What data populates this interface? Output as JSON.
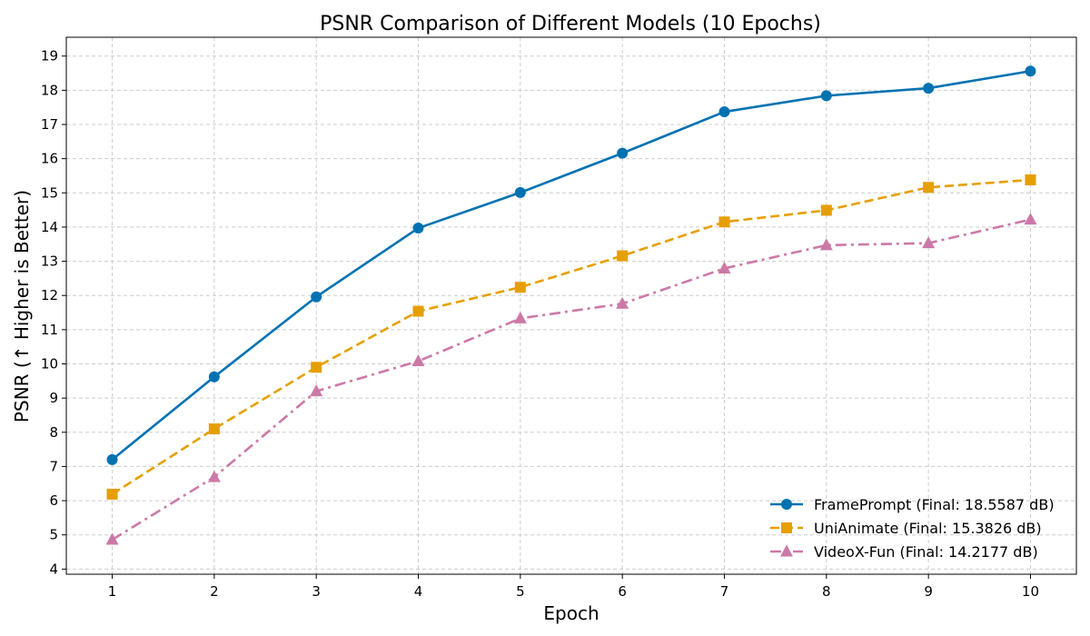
{
  "chart_data": {
    "type": "line",
    "title": "PSNR Comparison of Different Models (10 Epochs)",
    "xlabel": "Epoch",
    "ylabel": "PSNR (↑ Higher is Better)",
    "x": [
      1,
      2,
      3,
      4,
      5,
      6,
      7,
      8,
      9,
      10
    ],
    "xlim": [
      0.55,
      10.45
    ],
    "ylim": [
      3.85,
      19.55
    ],
    "yticks": [
      4,
      5,
      6,
      7,
      8,
      9,
      10,
      11,
      12,
      13,
      14,
      15,
      16,
      17,
      18,
      19
    ],
    "grid": true,
    "legend_position": "lower-right",
    "series": [
      {
        "name": "FramePrompt",
        "legend": "FramePrompt (Final: 18.5587 dB)",
        "color": "#0072B2",
        "marker": "circle",
        "linestyle": "solid",
        "values": [
          7.2,
          9.62,
          11.96,
          13.97,
          15.01,
          16.16,
          17.37,
          17.84,
          18.06,
          18.56
        ]
      },
      {
        "name": "UniAnimate",
        "legend": "UniAnimate (Final: 15.3826 dB)",
        "color": "#E69F00",
        "marker": "square",
        "linestyle": "dashed",
        "values": [
          6.19,
          8.1,
          9.9,
          11.54,
          12.24,
          13.16,
          14.15,
          14.49,
          15.16,
          15.38
        ]
      },
      {
        "name": "VideoX-Fun",
        "legend": "VideoX-Fun (Final: 14.2177 dB)",
        "color": "#CC79A7",
        "marker": "triangle",
        "linestyle": "dashdot",
        "values": [
          4.86,
          6.69,
          9.2,
          10.08,
          11.33,
          11.76,
          12.79,
          13.47,
          13.53,
          14.22
        ]
      }
    ]
  }
}
